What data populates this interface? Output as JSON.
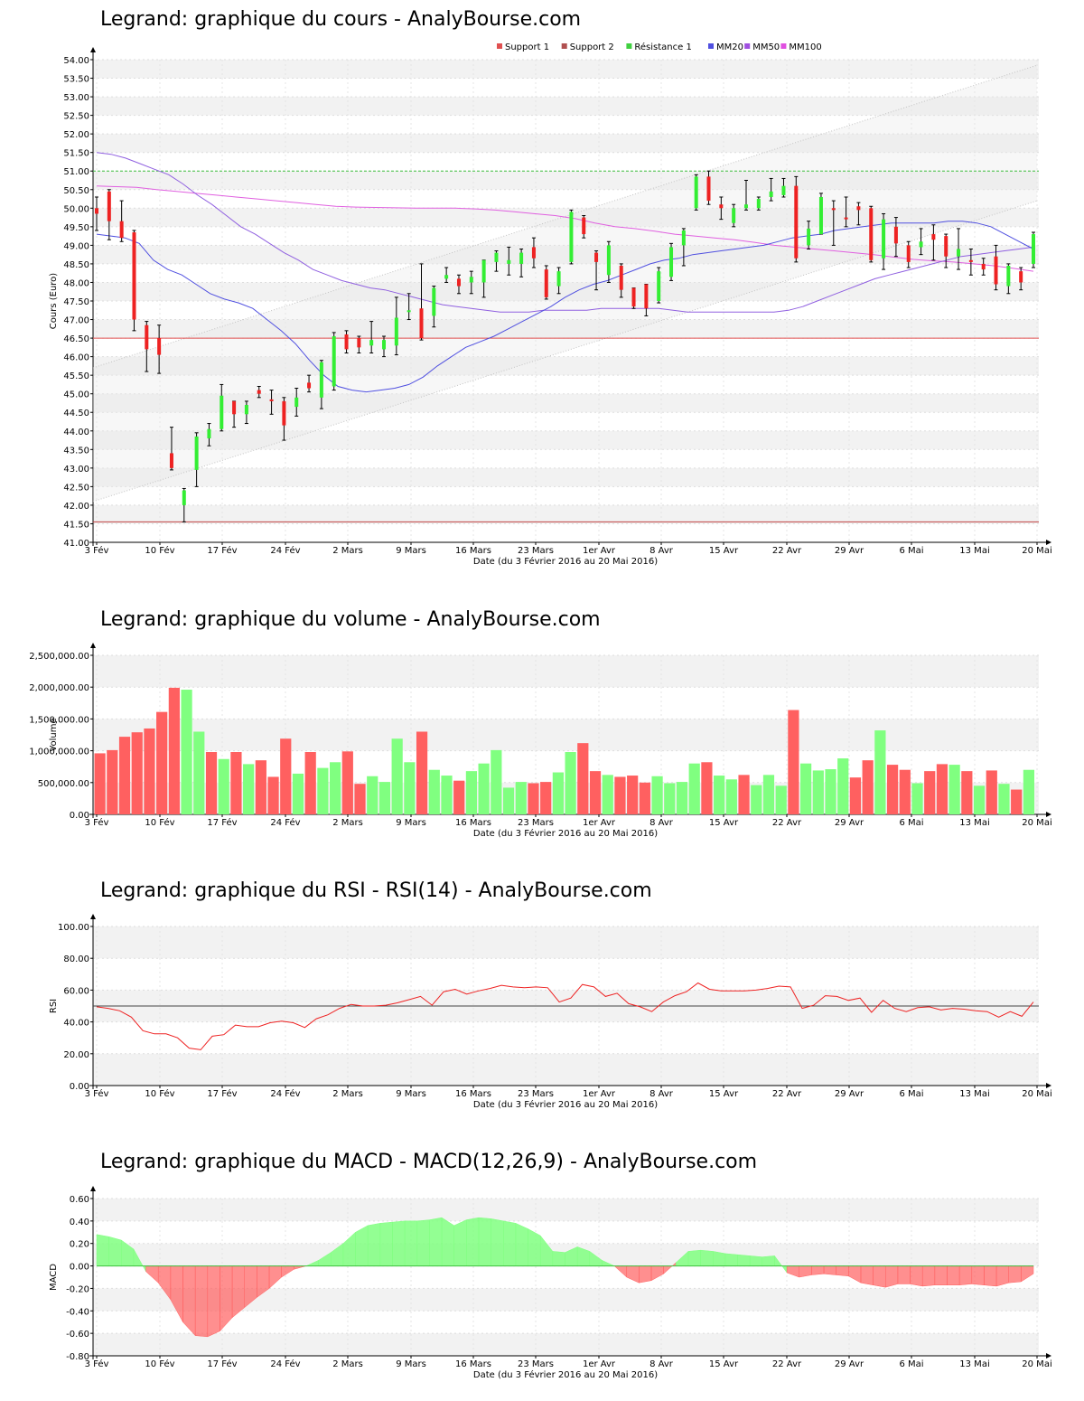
{
  "chart_data": [
    {
      "type": "candlestick",
      "title": "Legrand: graphique du cours - AnalyBourse.com",
      "xlabel": "Date (du 3 Février 2016 au 20 Mai 2016)",
      "ylabel": "Cours (Euro)",
      "ylim": [
        41.0,
        54.0
      ],
      "y_ticks": [
        "54.00",
        "53.50",
        "53.00",
        "52.50",
        "52.00",
        "51.50",
        "51.00",
        "50.50",
        "50.00",
        "49.50",
        "49.00",
        "48.50",
        "48.00",
        "47.50",
        "47.00",
        "46.50",
        "46.00",
        "45.50",
        "45.00",
        "44.50",
        "44.00",
        "43.50",
        "43.00",
        "42.50",
        "42.00",
        "41.50",
        "41.00"
      ],
      "x_ticks": [
        "3 Fév",
        "10 Fév",
        "17 Fév",
        "24 Fév",
        "2 Mars",
        "9 Mars",
        "16 Mars",
        "23 Mars",
        "1er Avr",
        "8 Avr",
        "15 Avr",
        "22 Avr",
        "29 Avr",
        "6 Mai",
        "13 Mai",
        "20 Mai"
      ],
      "legend": [
        {
          "name": "Support 1",
          "color": "#e05050"
        },
        {
          "name": "Support 2",
          "color": "#b05050"
        },
        {
          "name": "Résistance 1",
          "color": "#40d040"
        },
        {
          "name": "MM20",
          "color": "#5050e0"
        },
        {
          "name": "MM50",
          "color": "#a050e0"
        },
        {
          "name": "MM100",
          "color": "#e050e0"
        }
      ],
      "levels": {
        "support1": 46.5,
        "support2": 41.55,
        "resistance1": 51.0
      },
      "candles": [
        {
          "o": 50.0,
          "c": 49.85,
          "h": 50.3,
          "l": 49.4
        },
        {
          "o": 50.45,
          "c": 49.65,
          "h": 50.5,
          "l": 49.15
        },
        {
          "o": 49.65,
          "c": 49.2,
          "h": 50.2,
          "l": 49.1
        },
        {
          "o": 49.35,
          "c": 47.0,
          "h": 49.4,
          "l": 46.7
        },
        {
          "o": 46.85,
          "c": 46.2,
          "h": 46.95,
          "l": 45.6
        },
        {
          "o": 46.5,
          "c": 46.05,
          "h": 46.85,
          "l": 45.55
        },
        {
          "o": 43.4,
          "c": 43.0,
          "h": 44.1,
          "l": 42.95
        },
        {
          "o": 42.0,
          "c": 42.4,
          "h": 42.45,
          "l": 41.55
        },
        {
          "o": 42.95,
          "c": 43.85,
          "h": 43.95,
          "l": 42.5
        },
        {
          "o": 43.8,
          "c": 44.05,
          "h": 44.2,
          "l": 43.6
        },
        {
          "o": 44.05,
          "c": 44.95,
          "h": 45.25,
          "l": 44.0
        },
        {
          "o": 44.8,
          "c": 44.45,
          "h": 44.8,
          "l": 44.1
        },
        {
          "o": 44.45,
          "c": 44.7,
          "h": 44.8,
          "l": 44.2
        },
        {
          "o": 45.1,
          "c": 45.0,
          "h": 45.2,
          "l": 44.9
        },
        {
          "o": 44.85,
          "c": 44.8,
          "h": 45.1,
          "l": 44.45
        },
        {
          "o": 44.8,
          "c": 44.15,
          "h": 44.9,
          "l": 43.75
        },
        {
          "o": 44.65,
          "c": 44.9,
          "h": 45.15,
          "l": 44.4
        },
        {
          "o": 45.3,
          "c": 45.15,
          "h": 45.5,
          "l": 45.05
        },
        {
          "o": 44.9,
          "c": 45.85,
          "h": 45.9,
          "l": 44.6
        },
        {
          "o": 45.2,
          "c": 46.55,
          "h": 46.65,
          "l": 45.1
        },
        {
          "o": 46.6,
          "c": 46.2,
          "h": 46.7,
          "l": 46.1
        },
        {
          "o": 46.5,
          "c": 46.25,
          "h": 46.55,
          "l": 46.1
        },
        {
          "o": 46.3,
          "c": 46.45,
          "h": 46.95,
          "l": 46.1
        },
        {
          "o": 46.2,
          "c": 46.45,
          "h": 46.55,
          "l": 46.0
        },
        {
          "o": 46.3,
          "c": 47.05,
          "h": 47.6,
          "l": 46.05
        },
        {
          "o": 47.2,
          "c": 47.25,
          "h": 47.7,
          "l": 47.0
        },
        {
          "o": 47.3,
          "c": 46.5,
          "h": 48.5,
          "l": 46.45
        },
        {
          "o": 47.1,
          "c": 47.85,
          "h": 47.9,
          "l": 46.8
        },
        {
          "o": 48.1,
          "c": 48.2,
          "h": 48.4,
          "l": 48.0
        },
        {
          "o": 48.1,
          "c": 47.9,
          "h": 48.2,
          "l": 47.7
        },
        {
          "o": 48.0,
          "c": 48.15,
          "h": 48.3,
          "l": 47.7
        },
        {
          "o": 48.0,
          "c": 48.6,
          "h": 48.6,
          "l": 47.6
        },
        {
          "o": 48.55,
          "c": 48.8,
          "h": 48.85,
          "l": 48.3
        },
        {
          "o": 48.5,
          "c": 48.6,
          "h": 48.95,
          "l": 48.2
        },
        {
          "o": 48.5,
          "c": 48.8,
          "h": 48.9,
          "l": 48.15
        },
        {
          "o": 48.95,
          "c": 48.65,
          "h": 49.2,
          "l": 48.4
        },
        {
          "o": 48.35,
          "c": 47.6,
          "h": 48.45,
          "l": 47.55
        },
        {
          "o": 47.9,
          "c": 48.3,
          "h": 48.4,
          "l": 47.7
        },
        {
          "o": 48.55,
          "c": 49.9,
          "h": 49.95,
          "l": 48.5
        },
        {
          "o": 49.75,
          "c": 49.3,
          "h": 49.8,
          "l": 49.2
        },
        {
          "o": 48.8,
          "c": 48.55,
          "h": 48.85,
          "l": 47.8
        },
        {
          "o": 48.2,
          "c": 49.0,
          "h": 49.1,
          "l": 48.0
        },
        {
          "o": 48.45,
          "c": 47.8,
          "h": 48.5,
          "l": 47.6
        },
        {
          "o": 47.85,
          "c": 47.35,
          "h": 47.85,
          "l": 47.3
        },
        {
          "o": 47.95,
          "c": 47.3,
          "h": 47.95,
          "l": 47.1
        },
        {
          "o": 47.5,
          "c": 48.3,
          "h": 48.4,
          "l": 47.45
        },
        {
          "o": 48.15,
          "c": 48.95,
          "h": 49.05,
          "l": 48.05
        },
        {
          "o": 49.0,
          "c": 49.4,
          "h": 49.45,
          "l": 48.45
        },
        {
          "o": 50.0,
          "c": 50.85,
          "h": 50.9,
          "l": 49.95
        },
        {
          "o": 50.85,
          "c": 50.2,
          "h": 51.0,
          "l": 50.1
        },
        {
          "o": 50.1,
          "c": 50.0,
          "h": 50.3,
          "l": 49.7
        },
        {
          "o": 49.6,
          "c": 50.0,
          "h": 50.1,
          "l": 49.5
        },
        {
          "o": 50.0,
          "c": 50.1,
          "h": 50.75,
          "l": 49.95
        },
        {
          "o": 50.0,
          "c": 50.25,
          "h": 50.3,
          "l": 49.95
        },
        {
          "o": 50.3,
          "c": 50.45,
          "h": 50.8,
          "l": 50.2
        },
        {
          "o": 50.35,
          "c": 50.6,
          "h": 50.8,
          "l": 50.3
        },
        {
          "o": 50.6,
          "c": 48.65,
          "h": 50.85,
          "l": 48.55
        },
        {
          "o": 49.0,
          "c": 49.45,
          "h": 49.65,
          "l": 48.9
        },
        {
          "o": 49.3,
          "c": 50.3,
          "h": 50.4,
          "l": 49.3
        },
        {
          "o": 50.0,
          "c": 49.95,
          "h": 50.2,
          "l": 49.0
        },
        {
          "o": 49.75,
          "c": 49.7,
          "h": 50.3,
          "l": 49.5
        },
        {
          "o": 50.05,
          "c": 49.95,
          "h": 50.15,
          "l": 49.55
        },
        {
          "o": 50.0,
          "c": 48.6,
          "h": 50.05,
          "l": 48.55
        },
        {
          "o": 48.65,
          "c": 49.7,
          "h": 49.85,
          "l": 48.35
        },
        {
          "o": 49.5,
          "c": 49.05,
          "h": 49.75,
          "l": 48.7
        },
        {
          "o": 49.0,
          "c": 48.55,
          "h": 49.1,
          "l": 48.4
        },
        {
          "o": 48.95,
          "c": 49.1,
          "h": 49.45,
          "l": 48.75
        },
        {
          "o": 49.3,
          "c": 49.15,
          "h": 49.55,
          "l": 48.6
        },
        {
          "o": 49.25,
          "c": 48.7,
          "h": 49.3,
          "l": 48.4
        },
        {
          "o": 48.7,
          "c": 48.9,
          "h": 49.45,
          "l": 48.35
        },
        {
          "o": 48.6,
          "c": 48.55,
          "h": 48.9,
          "l": 48.2
        },
        {
          "o": 48.5,
          "c": 48.35,
          "h": 48.65,
          "l": 48.2
        },
        {
          "o": 48.7,
          "c": 47.95,
          "h": 49.0,
          "l": 47.8
        },
        {
          "o": 47.9,
          "c": 48.45,
          "h": 48.5,
          "l": 47.7
        },
        {
          "o": 48.3,
          "c": 48.0,
          "h": 48.4,
          "l": 47.8
        },
        {
          "o": 48.5,
          "c": 49.3,
          "h": 49.35,
          "l": 48.4
        }
      ],
      "mm20": [
        49.3,
        49.25,
        49.2,
        49.05,
        48.6,
        48.35,
        48.2,
        47.95,
        47.7,
        47.55,
        47.45,
        47.3,
        47.0,
        46.7,
        46.35,
        45.9,
        45.5,
        45.2,
        45.1,
        45.05,
        45.1,
        45.15,
        45.25,
        45.45,
        45.75,
        46.0,
        46.25,
        46.4,
        46.55,
        46.75,
        46.95,
        47.15,
        47.35,
        47.6,
        47.8,
        47.95,
        48.05,
        48.2,
        48.35,
        48.5,
        48.6,
        48.65,
        48.75,
        48.8,
        48.85,
        48.9,
        48.95,
        49.0,
        49.1,
        49.2,
        49.25,
        49.3,
        49.4,
        49.45,
        49.5,
        49.55,
        49.6,
        49.6,
        49.6,
        49.6,
        49.65,
        49.65,
        49.6,
        49.5,
        49.3,
        49.1,
        48.9
      ],
      "mm50": [
        51.5,
        51.45,
        51.35,
        51.2,
        51.05,
        50.9,
        50.65,
        50.35,
        50.1,
        49.8,
        49.5,
        49.3,
        49.05,
        48.8,
        48.6,
        48.35,
        48.2,
        48.05,
        47.95,
        47.85,
        47.8,
        47.7,
        47.6,
        47.5,
        47.4,
        47.35,
        47.3,
        47.25,
        47.2,
        47.2,
        47.2,
        47.25,
        47.25,
        47.25,
        47.25,
        47.3,
        47.3,
        47.3,
        47.3,
        47.3,
        47.25,
        47.2,
        47.2,
        47.2,
        47.2,
        47.2,
        47.2,
        47.2,
        47.25,
        47.35,
        47.5,
        47.65,
        47.8,
        47.95,
        48.1,
        48.2,
        48.3,
        48.4,
        48.5,
        48.6,
        48.7,
        48.75,
        48.8,
        48.85,
        48.9,
        48.95
      ],
      "mm100": [
        50.6,
        50.58,
        50.56,
        50.5,
        50.45,
        50.4,
        50.35,
        50.3,
        50.25,
        50.2,
        50.15,
        50.1,
        50.05,
        50.03,
        50.02,
        50.01,
        50.0,
        50.0,
        50.0,
        49.98,
        49.95,
        49.9,
        49.85,
        49.8,
        49.72,
        49.6,
        49.5,
        49.45,
        49.38,
        49.3,
        49.25,
        49.2,
        49.15,
        49.08,
        49.0,
        48.95,
        48.9,
        48.85,
        48.8,
        48.75,
        48.68,
        48.62,
        48.58,
        48.55,
        48.5,
        48.45,
        48.38,
        48.3
      ]
    },
    {
      "type": "bar",
      "title": "Legrand: graphique du volume - AnalyBourse.com",
      "xlabel": "Date (du 3 Février 2016 au 20 Mai 2016)",
      "ylabel": "Volume",
      "ylim": [
        0,
        2500000
      ],
      "y_ticks": [
        "2,500,000.00",
        "2,000,000.00",
        "1,500,000.00",
        "1,000,000.00",
        "500,000.00",
        "0.00"
      ],
      "x_ticks": [
        "3 Fév",
        "10 Fév",
        "17 Fév",
        "24 Fév",
        "2 Mars",
        "9 Mars",
        "16 Mars",
        "23 Mars",
        "1er Avr",
        "8 Avr",
        "15 Avr",
        "22 Avr",
        "29 Avr",
        "6 Mai",
        "13 Mai",
        "20 Mai"
      ],
      "values": [
        960000,
        1010000,
        1220000,
        1290000,
        1350000,
        1610000,
        1990000,
        1960000,
        1300000,
        980000,
        870000,
        980000,
        790000,
        850000,
        590000,
        1190000,
        640000,
        980000,
        730000,
        820000,
        990000,
        480000,
        600000,
        510000,
        1190000,
        820000,
        1300000,
        700000,
        610000,
        530000,
        680000,
        800000,
        1010000,
        420000,
        510000,
        490000,
        510000,
        660000,
        980000,
        1120000,
        680000,
        620000,
        590000,
        610000,
        500000,
        600000,
        490000,
        510000,
        800000,
        820000,
        610000,
        550000,
        620000,
        460000,
        620000,
        450000,
        1640000,
        800000,
        690000,
        710000,
        880000,
        580000,
        850000,
        1320000,
        780000,
        700000,
        490000,
        680000,
        790000,
        780000,
        680000,
        450000,
        690000,
        480000,
        390000,
        700000
      ],
      "colors": [
        "r",
        "r",
        "r",
        "r",
        "r",
        "r",
        "r",
        "g",
        "g",
        "r",
        "g",
        "r",
        "g",
        "r",
        "r",
        "r",
        "g",
        "r",
        "g",
        "g",
        "r",
        "r",
        "g",
        "g",
        "g",
        "g",
        "r",
        "g",
        "g",
        "r",
        "g",
        "g",
        "g",
        "g",
        "g",
        "r",
        "r",
        "g",
        "g",
        "r",
        "r",
        "g",
        "r",
        "r",
        "r",
        "g",
        "g",
        "g",
        "g",
        "r",
        "g",
        "g",
        "r",
        "g",
        "g",
        "g",
        "r",
        "g",
        "g",
        "g",
        "g",
        "r",
        "r",
        "g",
        "r",
        "r",
        "g",
        "r",
        "r",
        "g",
        "r",
        "g",
        "r",
        "g",
        "r",
        "g"
      ]
    },
    {
      "type": "line",
      "title": "Legrand: graphique du RSI - RSI(14) - AnalyBourse.com",
      "xlabel": "Date (du 3 Février 2016 au 20 Mai 2016)",
      "ylabel": "RSI",
      "ylim": [
        0,
        100
      ],
      "y_ticks": [
        "100.00",
        "80.00",
        "60.00",
        "40.00",
        "20.00",
        "0.00"
      ],
      "x_ticks": [
        "3 Fév",
        "10 Fév",
        "17 Fév",
        "24 Fév",
        "2 Mars",
        "9 Mars",
        "16 Mars",
        "23 Mars",
        "1er Avr",
        "8 Avr",
        "15 Avr",
        "22 Avr",
        "29 Avr",
        "6 Mai",
        "13 Mai",
        "20 Mai"
      ],
      "reference": 50,
      "values": [
        49.5,
        48.5,
        47.0,
        43.0,
        34.5,
        32.5,
        32.5,
        30.0,
        23.5,
        22.5,
        31.0,
        32.0,
        38.0,
        37.0,
        37.0,
        39.5,
        40.5,
        39.5,
        36.5,
        42.0,
        44.5,
        48.5,
        51.0,
        50.0,
        50.0,
        50.5,
        52.0,
        54.0,
        56.0,
        50.5,
        59.0,
        60.5,
        57.5,
        59.5,
        61.0,
        63.0,
        62.0,
        61.5,
        62.0,
        61.5,
        52.5,
        55.0,
        63.5,
        62.0,
        56.0,
        58.0,
        51.5,
        49.5,
        46.5,
        52.5,
        56.5,
        59.0,
        64.5,
        60.5,
        59.5,
        59.5,
        59.5,
        60.0,
        61.0,
        62.5,
        62.0,
        48.5,
        50.5,
        56.5,
        56.0,
        53.5,
        55.0,
        46.0,
        53.5,
        48.5,
        46.5,
        49.0,
        49.5,
        47.5,
        48.5,
        48.0,
        47.0,
        46.5,
        43.0,
        46.5,
        43.5,
        52.5
      ]
    },
    {
      "type": "area",
      "title": "Legrand: graphique du MACD - MACD(12,26,9) - AnalyBourse.com",
      "xlabel": "Date (du 3 Février 2016 au 20 Mai 2016)",
      "ylabel": "MACD",
      "ylim": [
        -0.8,
        0.6
      ],
      "y_ticks": [
        "0.60",
        "0.40",
        "0.20",
        "0.00",
        "-0.20",
        "-0.40",
        "-0.60",
        "-0.80"
      ],
      "x_ticks": [
        "3 Fév",
        "10 Fév",
        "17 Fév",
        "24 Fév",
        "2 Mars",
        "9 Mars",
        "16 Mars",
        "23 Mars",
        "1er Avr",
        "8 Avr",
        "15 Avr",
        "22 Avr",
        "29 Avr",
        "6 Mai",
        "13 Mai",
        "20 Mai"
      ],
      "values": [
        0.28,
        0.26,
        0.23,
        0.15,
        -0.05,
        -0.15,
        -0.3,
        -0.5,
        -0.62,
        -0.63,
        -0.58,
        -0.46,
        -0.37,
        -0.28,
        -0.2,
        -0.1,
        -0.03,
        0.0,
        0.05,
        0.12,
        0.2,
        0.3,
        0.36,
        0.38,
        0.39,
        0.4,
        0.4,
        0.41,
        0.43,
        0.36,
        0.41,
        0.43,
        0.42,
        0.4,
        0.38,
        0.33,
        0.27,
        0.13,
        0.12,
        0.17,
        0.13,
        0.05,
        0.0,
        -0.1,
        -0.15,
        -0.13,
        -0.07,
        0.03,
        0.13,
        0.14,
        0.13,
        0.11,
        0.1,
        0.09,
        0.08,
        0.09,
        -0.06,
        -0.1,
        -0.08,
        -0.07,
        -0.08,
        -0.09,
        -0.15,
        -0.17,
        -0.19,
        -0.16,
        -0.16,
        -0.18,
        -0.17,
        -0.17,
        -0.17,
        -0.16,
        -0.17,
        -0.18,
        -0.15,
        -0.14,
        -0.07
      ]
    }
  ]
}
